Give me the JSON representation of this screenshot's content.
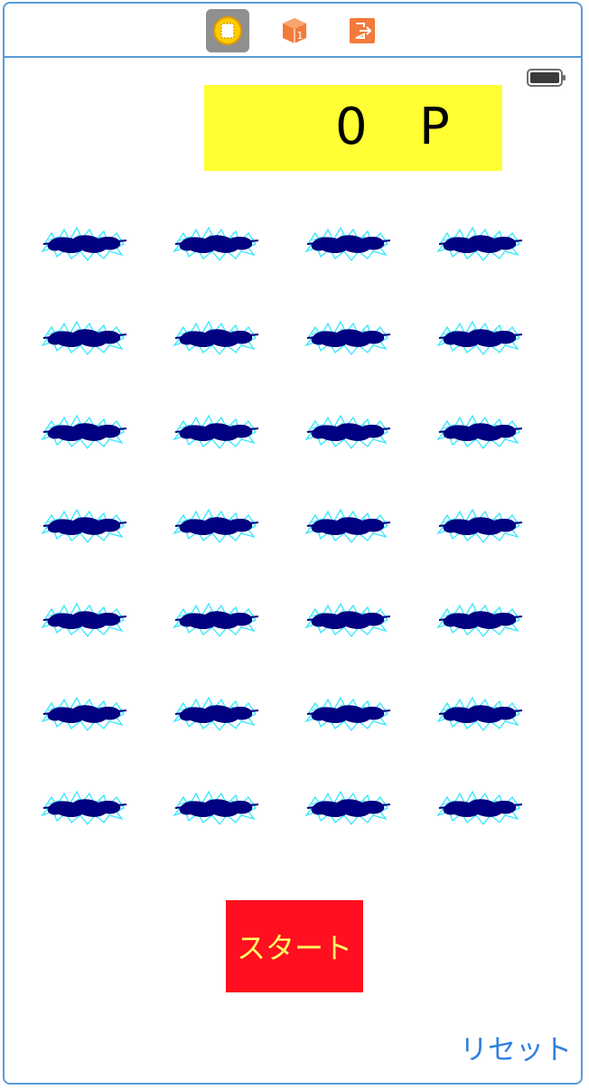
{
  "scene_dock": {
    "items": [
      {
        "icon": "view-controller-icon",
        "selected": true
      },
      {
        "icon": "first-responder-icon",
        "selected": false
      },
      {
        "icon": "exit-icon",
        "selected": false
      }
    ]
  },
  "status_bar": {
    "battery_icon": "battery-icon"
  },
  "score": {
    "value": "0",
    "unit": "P",
    "background": "#ffff33"
  },
  "grid": {
    "rows": 7,
    "columns": 4,
    "mole_icon": "mole-splash-icon"
  },
  "buttons": {
    "start_label": "スタート",
    "start_background": "#ff0f1f",
    "start_text_color": "#ffff66",
    "reset_label": "リセット",
    "reset_color": "#2f7fe0"
  }
}
